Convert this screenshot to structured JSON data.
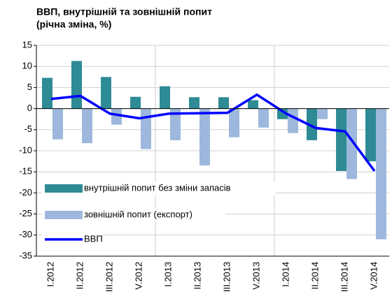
{
  "chart_data": {
    "type": "bar",
    "title": "ВВП, внутрішній та зовнішній попит",
    "subtitle": "(річна зміна, %)",
    "categories": [
      "I.2012",
      "II.2012",
      "III.2012",
      "V.2012",
      "I.2013",
      "II.2013",
      "III.2013",
      "V.2013",
      "I.2014",
      "II.2014",
      "III.2014",
      "V.2014"
    ],
    "series": [
      {
        "name": "внутрішній попит без зміни запасів",
        "color": "#2e8b96",
        "kind": "bar",
        "values": [
          7.3,
          11.3,
          7.5,
          2.8,
          5.3,
          2.7,
          2.7,
          2.0,
          -2.5,
          -7.5,
          -14.8,
          -12.5
        ]
      },
      {
        "name": "зовнішній попит (експорт)",
        "color": "#9db8dc",
        "kind": "bar",
        "values": [
          -7.3,
          -8.2,
          -3.8,
          -9.6,
          -7.5,
          -13.5,
          -6.8,
          -4.5,
          -5.8,
          -2.5,
          -16.7,
          -31.0
        ]
      },
      {
        "name": "ВВП",
        "color": "#0000ff",
        "kind": "line",
        "values": [
          2.3,
          3.0,
          -1.2,
          -2.3,
          -1.2,
          -1.1,
          -1.0,
          3.3,
          -1.2,
          -4.6,
          -5.4,
          -14.8
        ]
      }
    ],
    "ylim": [
      -35,
      15
    ],
    "yticks": [
      -35,
      -30,
      -25,
      -20,
      -15,
      -10,
      -5,
      0,
      5,
      10,
      15
    ],
    "grid": true
  }
}
